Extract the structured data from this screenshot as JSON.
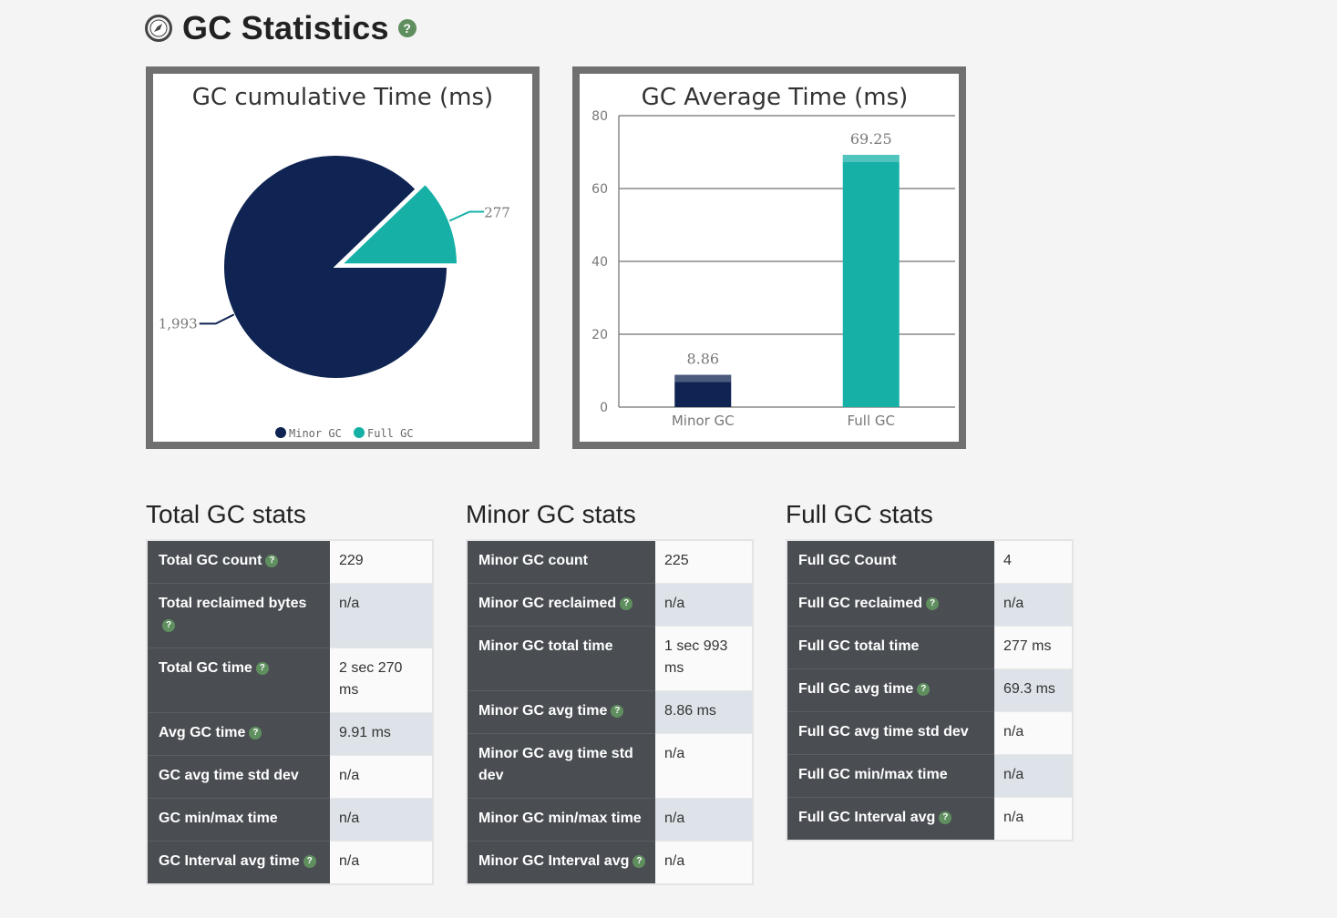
{
  "header": {
    "title": "GC Statistics",
    "help": "?"
  },
  "help_glyph": "?",
  "colors": {
    "minor": "#0f2453",
    "full": "#16b0a7",
    "panel": "#4a4e53"
  },
  "chart_data": [
    {
      "type": "pie",
      "title": "GC cumulative Time (ms)",
      "series": [
        {
          "name": "Minor GC",
          "value": 1993,
          "label": "1,993"
        },
        {
          "name": "Full GC",
          "value": 277,
          "label": "277"
        }
      ],
      "legend": [
        "Minor GC",
        "Full GC"
      ],
      "legend_position": "bottom"
    },
    {
      "type": "bar",
      "title": "GC Average Time (ms)",
      "categories": [
        "Minor GC",
        "Full GC"
      ],
      "values": [
        8.86,
        69.25
      ],
      "ylim": [
        0,
        80
      ],
      "yticks": [
        "0",
        "20",
        "40",
        "60",
        "80"
      ],
      "grid": true
    }
  ],
  "total": {
    "heading": "Total GC stats",
    "rows": [
      {
        "label": "Total GC count",
        "value": "229",
        "help": true
      },
      {
        "label": "Total reclaimed bytes",
        "value": "n/a",
        "help": true
      },
      {
        "label": "Total GC time",
        "value": "2 sec 270 ms",
        "help": true
      },
      {
        "label": "Avg GC time",
        "value": "9.91 ms",
        "help": true
      },
      {
        "label": "GC avg time std dev",
        "value": "n/a",
        "help": false
      },
      {
        "label": "GC min/max time",
        "value": "n/a",
        "help": false
      },
      {
        "label": "GC Interval avg time",
        "value": "n/a",
        "help": true
      }
    ]
  },
  "minor": {
    "heading": "Minor GC stats",
    "rows": [
      {
        "label": "Minor GC count",
        "value": "225",
        "help": false
      },
      {
        "label": "Minor GC reclaimed",
        "value": "n/a",
        "help": true
      },
      {
        "label": "Minor GC total time",
        "value": "1 sec 993 ms",
        "help": false
      },
      {
        "label": "Minor GC avg time",
        "value": "8.86 ms",
        "help": true
      },
      {
        "label": "Minor GC avg time std dev",
        "value": "n/a",
        "help": false
      },
      {
        "label": "Minor GC min/max time",
        "value": "n/a",
        "help": false
      },
      {
        "label": "Minor GC Interval avg",
        "value": "n/a",
        "help": true
      }
    ]
  },
  "full": {
    "heading": "Full GC stats",
    "rows": [
      {
        "label": "Full GC Count",
        "value": "4",
        "help": false
      },
      {
        "label": "Full GC reclaimed",
        "value": "n/a",
        "help": true
      },
      {
        "label": "Full GC total time",
        "value": "277 ms",
        "help": false
      },
      {
        "label": "Full GC avg time",
        "value": "69.3 ms",
        "help": true
      },
      {
        "label": "Full GC avg time std dev",
        "value": "n/a",
        "help": false
      },
      {
        "label": "Full GC min/max time",
        "value": "n/a",
        "help": false
      },
      {
        "label": "Full GC Interval avg",
        "value": "n/a",
        "help": true
      }
    ]
  }
}
